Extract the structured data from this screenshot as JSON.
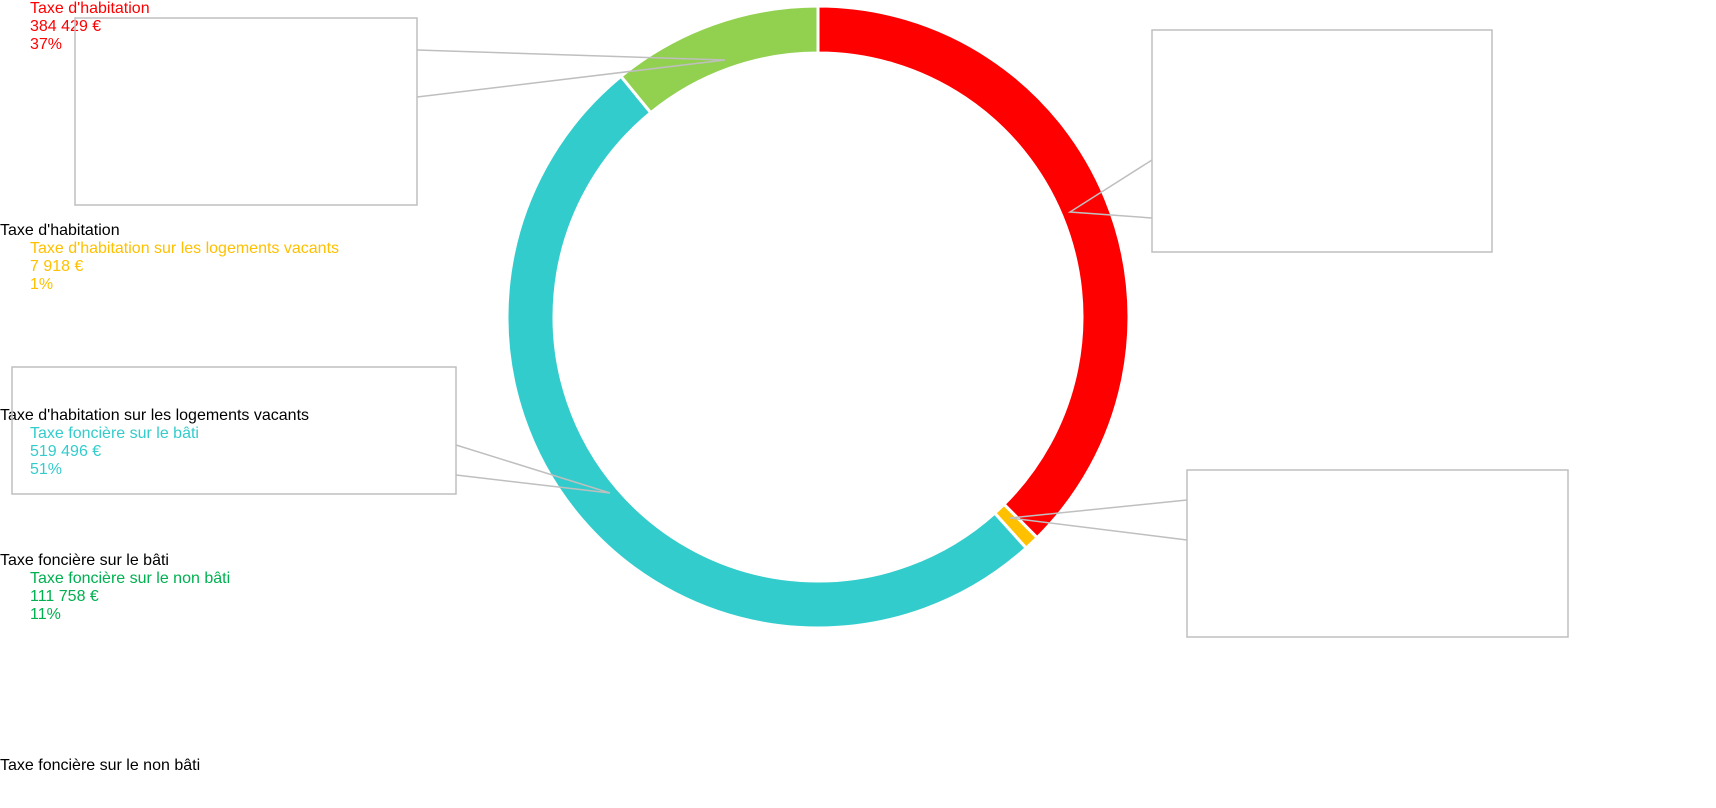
{
  "chart_data": {
    "type": "donut",
    "categories": [
      "Taxe d'habitation",
      "Taxe d'habitation sur les logements vacants",
      "Taxe foncière sur le bâti",
      "Taxe foncière sur le non bâti"
    ],
    "values": [
      384429,
      7918,
      519496,
      111758
    ],
    "value_labels": [
      "384 429 €",
      "7 918 €",
      "519 496 €",
      "111 758 €"
    ],
    "percent_labels": [
      "37%",
      "1%",
      "51%",
      "11%"
    ],
    "colors": [
      "#ff0000",
      "#ffc000",
      "#33cccc",
      "#92d050"
    ],
    "label_colors": [
      "#ff0000",
      "#ffc000",
      "#33cccc",
      "#00b050"
    ],
    "legend": "bottom-left"
  }
}
